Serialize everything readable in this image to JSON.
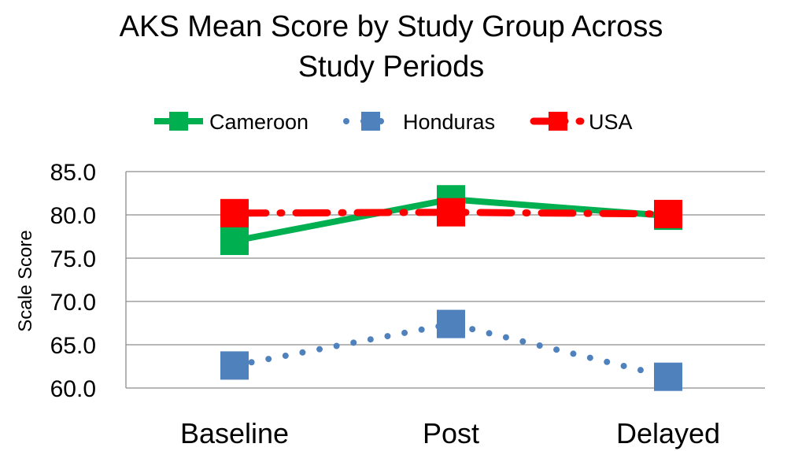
{
  "chart_data": {
    "type": "line",
    "title_lines": [
      "AKS Mean Score by Study Group Across",
      "Study Periods"
    ],
    "xlabel": "",
    "ylabel": "Scale Score",
    "categories": [
      "Baseline",
      "Post",
      "Delayed"
    ],
    "ylim": [
      60,
      85
    ],
    "yticks": [
      "60.0",
      "65.0",
      "70.0",
      "75.0",
      "80.0",
      "85.0"
    ],
    "grid": true,
    "legend_position": "top",
    "series": [
      {
        "name": "Cameroon",
        "values": [
          77.0,
          81.8,
          79.9
        ],
        "color": "#00b050",
        "line_style": "solid",
        "marker": "square"
      },
      {
        "name": "Honduras",
        "values": [
          62.6,
          67.4,
          61.3
        ],
        "color": "#4f81bd",
        "line_style": "dotted",
        "marker": "square"
      },
      {
        "name": "USA",
        "values": [
          80.2,
          80.3,
          80.1
        ],
        "color": "#ff0000",
        "line_style": "dash-dot",
        "marker": "square"
      }
    ]
  }
}
